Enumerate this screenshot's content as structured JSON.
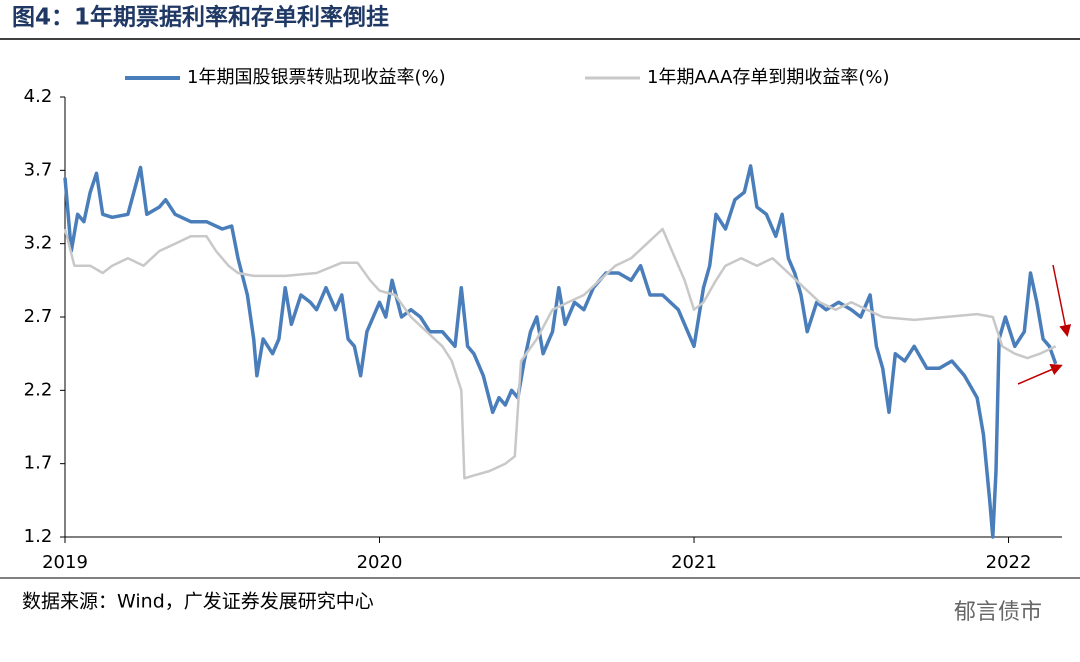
{
  "title": "图4：1年期票据利率和存单利率倒挂",
  "source": "数据来源：Wind，广发证券发展研究中心",
  "watermark": "郁言债市",
  "chart_data": {
    "type": "line",
    "xlim": [
      2019,
      2022.17
    ],
    "xticks": [
      2019,
      2020,
      2021,
      2022
    ],
    "ylim": [
      1.2,
      4.2
    ],
    "yticks": [
      1.2,
      1.7,
      2.2,
      2.7,
      3.2,
      3.7,
      4.2
    ],
    "legend": "top",
    "series": [
      {
        "name": "1年期国股银票转贴现收益率(%)",
        "color": "#4a7ebb",
        "x": [
          2019.0,
          2019.02,
          2019.04,
          2019.06,
          2019.08,
          2019.1,
          2019.12,
          2019.15,
          2019.2,
          2019.24,
          2019.26,
          2019.3,
          2019.32,
          2019.35,
          2019.4,
          2019.45,
          2019.5,
          2019.53,
          2019.55,
          2019.58,
          2019.6,
          2019.61,
          2019.63,
          2019.66,
          2019.68,
          2019.7,
          2019.72,
          2019.75,
          2019.78,
          2019.8,
          2019.83,
          2019.86,
          2019.88,
          2019.9,
          2019.92,
          2019.94,
          2019.96,
          2020.0,
          2020.02,
          2020.04,
          2020.07,
          2020.1,
          2020.13,
          2020.16,
          2020.2,
          2020.24,
          2020.26,
          2020.28,
          2020.3,
          2020.33,
          2020.36,
          2020.38,
          2020.4,
          2020.42,
          2020.44,
          2020.46,
          2020.48,
          2020.5,
          2020.52,
          2020.55,
          2020.57,
          2020.59,
          2020.62,
          2020.65,
          2020.68,
          2020.72,
          2020.76,
          2020.8,
          2020.83,
          2020.86,
          2020.9,
          2020.95,
          2021.0,
          2021.03,
          2021.05,
          2021.07,
          2021.1,
          2021.13,
          2021.16,
          2021.18,
          2021.2,
          2021.23,
          2021.26,
          2021.28,
          2021.3,
          2021.32,
          2021.34,
          2021.36,
          2021.39,
          2021.42,
          2021.46,
          2021.5,
          2021.53,
          2021.56,
          2021.58,
          2021.6,
          2021.62,
          2021.64,
          2021.67,
          2021.7,
          2021.74,
          2021.78,
          2021.82,
          2021.86,
          2021.9,
          2021.92,
          2021.94,
          2021.95,
          2021.96,
          2021.97,
          2021.99,
          2022.02,
          2022.05,
          2022.07,
          2022.09,
          2022.11,
          2022.13,
          2022.15
        ],
        "values": [
          3.65,
          3.15,
          3.4,
          3.35,
          3.55,
          3.68,
          3.4,
          3.38,
          3.4,
          3.72,
          3.4,
          3.45,
          3.5,
          3.4,
          3.35,
          3.35,
          3.3,
          3.32,
          3.1,
          2.85,
          2.55,
          2.3,
          2.55,
          2.45,
          2.55,
          2.9,
          2.65,
          2.85,
          2.8,
          2.75,
          2.9,
          2.75,
          2.85,
          2.55,
          2.5,
          2.3,
          2.6,
          2.8,
          2.7,
          2.95,
          2.7,
          2.75,
          2.7,
          2.6,
          2.6,
          2.5,
          2.9,
          2.5,
          2.45,
          2.3,
          2.05,
          2.15,
          2.1,
          2.2,
          2.15,
          2.4,
          2.6,
          2.7,
          2.45,
          2.6,
          2.9,
          2.65,
          2.8,
          2.75,
          2.9,
          3.0,
          3.0,
          2.95,
          3.05,
          2.85,
          2.85,
          2.75,
          2.5,
          2.9,
          3.05,
          3.4,
          3.3,
          3.5,
          3.55,
          3.73,
          3.45,
          3.4,
          3.25,
          3.4,
          3.1,
          3.0,
          2.85,
          2.6,
          2.8,
          2.75,
          2.8,
          2.75,
          2.7,
          2.85,
          2.5,
          2.35,
          2.05,
          2.45,
          2.4,
          2.5,
          2.35,
          2.35,
          2.4,
          2.3,
          2.15,
          1.9,
          1.45,
          1.2,
          1.65,
          2.55,
          2.7,
          2.5,
          2.6,
          3.0,
          2.8,
          2.55,
          2.5,
          2.38
        ]
      },
      {
        "name": "1年期AAA存单到期收益率(%)",
        "color": "#c8c8c8",
        "x": [
          2019.0,
          2019.03,
          2019.08,
          2019.12,
          2019.15,
          2019.2,
          2019.25,
          2019.3,
          2019.35,
          2019.4,
          2019.45,
          2019.48,
          2019.52,
          2019.55,
          2019.6,
          2019.7,
          2019.8,
          2019.88,
          2019.93,
          2019.97,
          2020.0,
          2020.05,
          2020.1,
          2020.15,
          2020.2,
          2020.23,
          2020.26,
          2020.27,
          2020.3,
          2020.35,
          2020.4,
          2020.43,
          2020.45,
          2020.5,
          2020.55,
          2020.6,
          2020.65,
          2020.7,
          2020.75,
          2020.8,
          2020.85,
          2020.9,
          2020.93,
          2020.97,
          2021.0,
          2021.03,
          2021.07,
          2021.1,
          2021.15,
          2021.2,
          2021.25,
          2021.3,
          2021.35,
          2021.4,
          2021.45,
          2021.5,
          2021.55,
          2021.6,
          2021.7,
          2021.8,
          2021.9,
          2021.95,
          2021.98,
          2022.02,
          2022.06,
          2022.1,
          2022.15
        ],
        "values": [
          3.3,
          3.05,
          3.05,
          3.0,
          3.05,
          3.1,
          3.05,
          3.15,
          3.2,
          3.25,
          3.25,
          3.15,
          3.05,
          3.0,
          2.98,
          2.98,
          3.0,
          3.07,
          3.07,
          2.95,
          2.88,
          2.85,
          2.7,
          2.6,
          2.5,
          2.4,
          2.2,
          1.6,
          1.62,
          1.65,
          1.7,
          1.75,
          2.4,
          2.55,
          2.75,
          2.8,
          2.85,
          2.95,
          3.05,
          3.1,
          3.2,
          3.3,
          3.15,
          2.95,
          2.75,
          2.8,
          2.95,
          3.05,
          3.1,
          3.05,
          3.1,
          3.0,
          2.9,
          2.8,
          2.75,
          2.8,
          2.75,
          2.7,
          2.68,
          2.7,
          2.72,
          2.7,
          2.5,
          2.45,
          2.42,
          2.45,
          2.5
        ]
      }
    ]
  }
}
